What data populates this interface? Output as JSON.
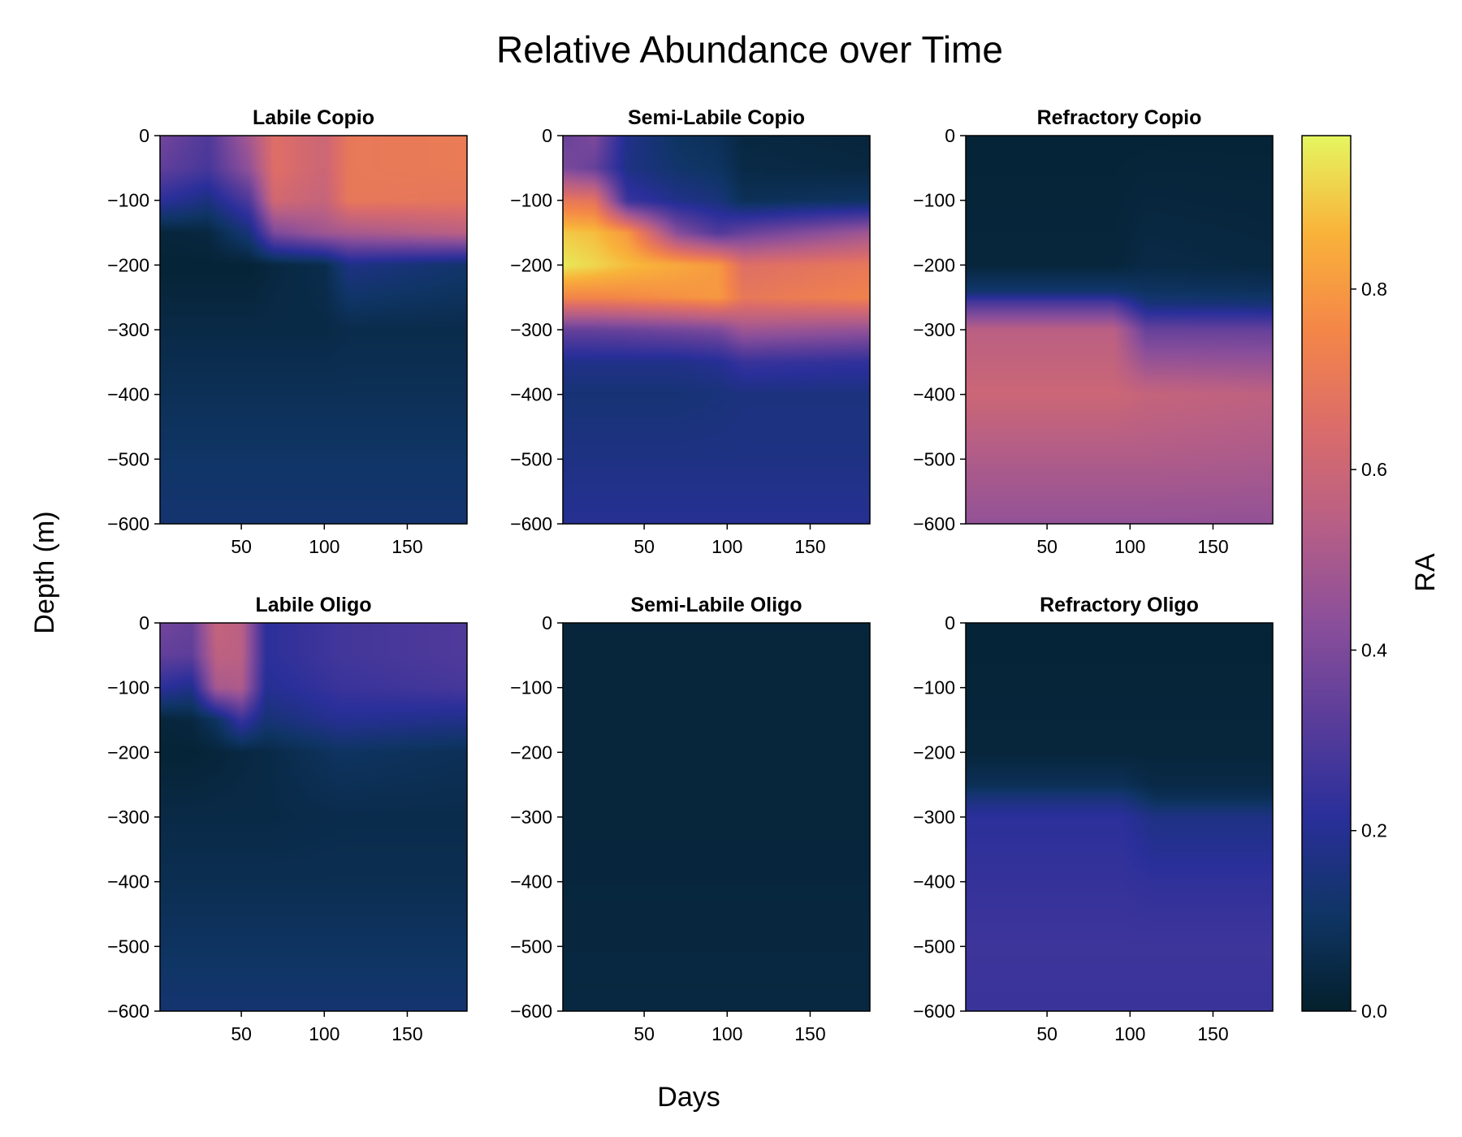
{
  "chart_data": {
    "type": "heatmap",
    "title": "Relative Abundance over Time",
    "xlabel": "Days",
    "ylabel": "Depth (m)",
    "xlim": [
      1,
      186
    ],
    "ylim": [
      -600,
      0
    ],
    "x_ticks": [
      50,
      100,
      150
    ],
    "y_ticks": [
      0,
      -100,
      -200,
      -300,
      -400,
      -500,
      -600
    ],
    "colorbar": {
      "label": "RA",
      "range": [
        0.0,
        0.97
      ],
      "ticks": [
        0.0,
        0.2,
        0.4,
        0.6,
        0.8
      ],
      "tick_labels": [
        "0.0",
        "0.2",
        "0.4",
        "0.6",
        "0.8"
      ],
      "colormap": "thermal",
      "stops": [
        "#04202c",
        "#0f3565",
        "#2a2f9a",
        "#5a3d9a",
        "#8b4f9a",
        "#b75f86",
        "#db6c6a",
        "#f48648",
        "#f9b33a",
        "#e5f660"
      ]
    },
    "panels": [
      {
        "title": "Labile Copio",
        "depth_profiles": [
          {
            "day": 1,
            "depths": [
              0,
              -50,
              -100,
              -150,
              -200,
              -300,
              -400,
              -500,
              -600
            ],
            "values": [
              0.38,
              0.34,
              0.22,
              0.03,
              0.02,
              0.05,
              0.08,
              0.11,
              0.13
            ]
          },
          {
            "day": 30,
            "depths": [
              0,
              -50,
              -100,
              -150,
              -200,
              -300,
              -400,
              -500,
              -600
            ],
            "values": [
              0.3,
              0.28,
              0.16,
              0.04,
              0.02,
              0.05,
              0.08,
              0.11,
              0.13
            ]
          },
          {
            "day": 55,
            "depths": [
              0,
              -50,
              -100,
              -150,
              -200,
              -300,
              -400,
              -500,
              -600
            ],
            "values": [
              0.5,
              0.45,
              0.3,
              0.15,
              0.02,
              0.05,
              0.08,
              0.11,
              0.13
            ]
          },
          {
            "day": 70,
            "depths": [
              0,
              -50,
              -100,
              -150,
              -200,
              -300,
              -400,
              -500,
              -600
            ],
            "values": [
              0.66,
              0.66,
              0.62,
              0.4,
              0.04,
              0.05,
              0.08,
              0.11,
              0.13
            ]
          },
          {
            "day": 100,
            "depths": [
              0,
              -50,
              -100,
              -150,
              -200,
              -300,
              -400,
              -500,
              -600
            ],
            "values": [
              0.6,
              0.6,
              0.58,
              0.48,
              0.06,
              0.05,
              0.08,
              0.11,
              0.13
            ]
          },
          {
            "day": 115,
            "depths": [
              0,
              -50,
              -100,
              -150,
              -200,
              -300,
              -400,
              -500,
              -600
            ],
            "values": [
              0.7,
              0.7,
              0.7,
              0.5,
              0.17,
              0.06,
              0.08,
              0.11,
              0.13
            ]
          },
          {
            "day": 186,
            "depths": [
              0,
              -50,
              -100,
              -150,
              -200,
              -300,
              -400,
              -500,
              -600
            ],
            "values": [
              0.71,
              0.71,
              0.69,
              0.55,
              0.12,
              0.06,
              0.08,
              0.11,
              0.13
            ]
          }
        ]
      },
      {
        "title": "Semi-Labile Copio",
        "depth_profiles": [
          {
            "day": 1,
            "depths": [
              0,
              -50,
              -100,
              -150,
              -200,
              -250,
              -300,
              -350,
              -400,
              -500,
              -600
            ],
            "values": [
              0.35,
              0.4,
              0.7,
              0.9,
              0.95,
              0.75,
              0.35,
              0.18,
              0.14,
              0.17,
              0.2
            ]
          },
          {
            "day": 20,
            "depths": [
              0,
              -50,
              -100,
              -150,
              -200,
              -250,
              -300,
              -350,
              -400,
              -500,
              -600
            ],
            "values": [
              0.4,
              0.35,
              0.68,
              0.88,
              0.92,
              0.75,
              0.35,
              0.18,
              0.14,
              0.17,
              0.2
            ]
          },
          {
            "day": 40,
            "depths": [
              0,
              -50,
              -100,
              -150,
              -200,
              -250,
              -300,
              -350,
              -400,
              -500,
              -600
            ],
            "values": [
              0.18,
              0.17,
              0.25,
              0.8,
              0.88,
              0.76,
              0.36,
              0.18,
              0.14,
              0.17,
              0.2
            ]
          },
          {
            "day": 70,
            "depths": [
              0,
              -50,
              -100,
              -150,
              -200,
              -250,
              -300,
              -350,
              -400,
              -500,
              -600
            ],
            "values": [
              0.1,
              0.12,
              0.18,
              0.42,
              0.84,
              0.78,
              0.38,
              0.18,
              0.14,
              0.17,
              0.2
            ]
          },
          {
            "day": 95,
            "depths": [
              0,
              -50,
              -100,
              -150,
              -200,
              -250,
              -300,
              -350,
              -400,
              -500,
              -600
            ],
            "values": [
              0.08,
              0.1,
              0.15,
              0.3,
              0.8,
              0.8,
              0.4,
              0.2,
              0.15,
              0.17,
              0.2
            ]
          },
          {
            "day": 110,
            "depths": [
              0,
              -50,
              -100,
              -150,
              -200,
              -250,
              -300,
              -350,
              -400,
              -500,
              -600
            ],
            "values": [
              0.04,
              0.05,
              0.08,
              0.35,
              0.66,
              0.7,
              0.48,
              0.25,
              0.16,
              0.17,
              0.2
            ]
          },
          {
            "day": 186,
            "depths": [
              0,
              -50,
              -100,
              -150,
              -200,
              -250,
              -300,
              -350,
              -400,
              -500,
              -600
            ],
            "values": [
              0.03,
              0.04,
              0.1,
              0.48,
              0.7,
              0.74,
              0.45,
              0.23,
              0.16,
              0.17,
              0.2
            ]
          }
        ]
      },
      {
        "title": "Refractory Copio",
        "depth_profiles": [
          {
            "day": 1,
            "depths": [
              0,
              -200,
              -240,
              -260,
              -300,
              -400,
              -500,
              -600
            ],
            "values": [
              0.02,
              0.03,
              0.12,
              0.3,
              0.55,
              0.6,
              0.52,
              0.45
            ]
          },
          {
            "day": 90,
            "depths": [
              0,
              -200,
              -240,
              -260,
              -300,
              -400,
              -500,
              -600
            ],
            "values": [
              0.02,
              0.03,
              0.12,
              0.3,
              0.55,
              0.6,
              0.52,
              0.45
            ]
          },
          {
            "day": 110,
            "depths": [
              0,
              -200,
              -240,
              -260,
              -300,
              -400,
              -500,
              -600
            ],
            "values": [
              0.02,
              0.05,
              0.1,
              0.15,
              0.35,
              0.58,
              0.52,
              0.45
            ]
          },
          {
            "day": 186,
            "depths": [
              0,
              -200,
              -240,
              -260,
              -300,
              -400,
              -500,
              -600
            ],
            "values": [
              0.02,
              0.04,
              0.09,
              0.14,
              0.35,
              0.56,
              0.51,
              0.45
            ]
          }
        ]
      },
      {
        "title": "Labile Oligo",
        "depth_profiles": [
          {
            "day": 1,
            "depths": [
              0,
              -50,
              -100,
              -150,
              -200,
              -300,
              -400,
              -500,
              -600
            ],
            "values": [
              0.38,
              0.34,
              0.22,
              0.03,
              0.02,
              0.05,
              0.07,
              0.1,
              0.13
            ]
          },
          {
            "day": 20,
            "depths": [
              0,
              -50,
              -100,
              -150,
              -200,
              -300,
              -400,
              -500,
              -600
            ],
            "values": [
              0.35,
              0.33,
              0.18,
              0.04,
              0.02,
              0.05,
              0.07,
              0.1,
              0.13
            ]
          },
          {
            "day": 35,
            "depths": [
              0,
              -50,
              -100,
              -150,
              -200,
              -300,
              -400,
              -500,
              -600
            ],
            "values": [
              0.58,
              0.56,
              0.5,
              0.1,
              0.03,
              0.05,
              0.07,
              0.1,
              0.13
            ]
          },
          {
            "day": 50,
            "depths": [
              0,
              -50,
              -100,
              -150,
              -200,
              -300,
              -400,
              -500,
              -600
            ],
            "values": [
              0.55,
              0.55,
              0.52,
              0.25,
              0.04,
              0.05,
              0.07,
              0.1,
              0.13
            ]
          },
          {
            "day": 65,
            "depths": [
              0,
              -50,
              -100,
              -150,
              -200,
              -300,
              -400,
              -500,
              -600
            ],
            "values": [
              0.22,
              0.22,
              0.2,
              0.14,
              0.05,
              0.05,
              0.07,
              0.1,
              0.13
            ]
          },
          {
            "day": 110,
            "depths": [
              0,
              -50,
              -100,
              -150,
              -200,
              -300,
              -400,
              -500,
              -600
            ],
            "values": [
              0.27,
              0.27,
              0.25,
              0.2,
              0.1,
              0.06,
              0.07,
              0.1,
              0.13
            ]
          },
          {
            "day": 186,
            "depths": [
              0,
              -50,
              -100,
              -150,
              -200,
              -300,
              -400,
              -500,
              -600
            ],
            "values": [
              0.3,
              0.3,
              0.28,
              0.18,
              0.08,
              0.06,
              0.07,
              0.1,
              0.13
            ]
          }
        ]
      },
      {
        "title": "Semi-Labile Oligo",
        "depth_profiles": [
          {
            "day": 1,
            "depths": [
              0,
              -300,
              -600
            ],
            "values": [
              0.03,
              0.03,
              0.04
            ]
          },
          {
            "day": 186,
            "depths": [
              0,
              -300,
              -600
            ],
            "values": [
              0.03,
              0.03,
              0.04
            ]
          }
        ]
      },
      {
        "title": "Refractory Oligo",
        "depth_profiles": [
          {
            "day": 1,
            "depths": [
              0,
              -200,
              -250,
              -270,
              -300,
              -400,
              -500,
              -600
            ],
            "values": [
              0.02,
              0.03,
              0.08,
              0.15,
              0.22,
              0.24,
              0.26,
              0.25
            ]
          },
          {
            "day": 95,
            "depths": [
              0,
              -200,
              -250,
              -270,
              -300,
              -400,
              -500,
              -600
            ],
            "values": [
              0.02,
              0.03,
              0.08,
              0.15,
              0.22,
              0.24,
              0.26,
              0.25
            ]
          },
          {
            "day": 115,
            "depths": [
              0,
              -200,
              -250,
              -270,
              -300,
              -400,
              -500,
              -600
            ],
            "values": [
              0.02,
              0.03,
              0.05,
              0.08,
              0.17,
              0.23,
              0.26,
              0.25
            ]
          },
          {
            "day": 186,
            "depths": [
              0,
              -200,
              -250,
              -270,
              -300,
              -400,
              -500,
              -600
            ],
            "values": [
              0.02,
              0.03,
              0.05,
              0.08,
              0.17,
              0.23,
              0.26,
              0.25
            ]
          }
        ]
      }
    ]
  }
}
